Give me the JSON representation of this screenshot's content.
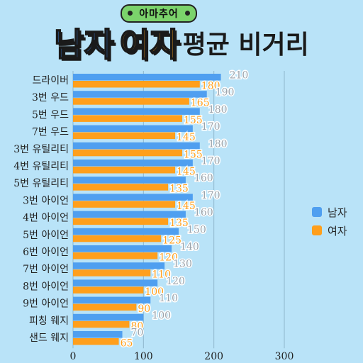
{
  "header": {
    "badge": "아마추어",
    "title_male": "남자",
    "title_female": "여자",
    "title_rest": "평균 비거리"
  },
  "colors": {
    "male": "#4f9ff0",
    "female": "#ff9f1c",
    "grid": "#8fb7cc"
  },
  "chart_data": {
    "type": "bar",
    "orientation": "horizontal",
    "categories": [
      "드라이버",
      "3번 우드",
      "5번 우드",
      "7번 우드",
      "3번 유틸리티",
      "4번 유틸리티",
      "5번 유틸리티",
      "3번 아이언",
      "4번 아이언",
      "5번 아이언",
      "6번 아이언",
      "7번 아이언",
      "8번 아이언",
      "9번 아이언",
      "피칭 웨지",
      "샌드 웨지"
    ],
    "series": [
      {
        "name": "남자",
        "values": [
          210,
          190,
          180,
          170,
          180,
          170,
          160,
          170,
          160,
          150,
          140,
          130,
          120,
          110,
          100,
          70
        ]
      },
      {
        "name": "여자",
        "values": [
          180,
          165,
          155,
          145,
          155,
          145,
          135,
          145,
          135,
          125,
          120,
          110,
          100,
          90,
          80,
          65
        ]
      }
    ],
    "xticks": [
      0,
      100,
      200,
      300
    ],
    "xlim": [
      0,
      300
    ],
    "grid": true,
    "legend": "right"
  }
}
